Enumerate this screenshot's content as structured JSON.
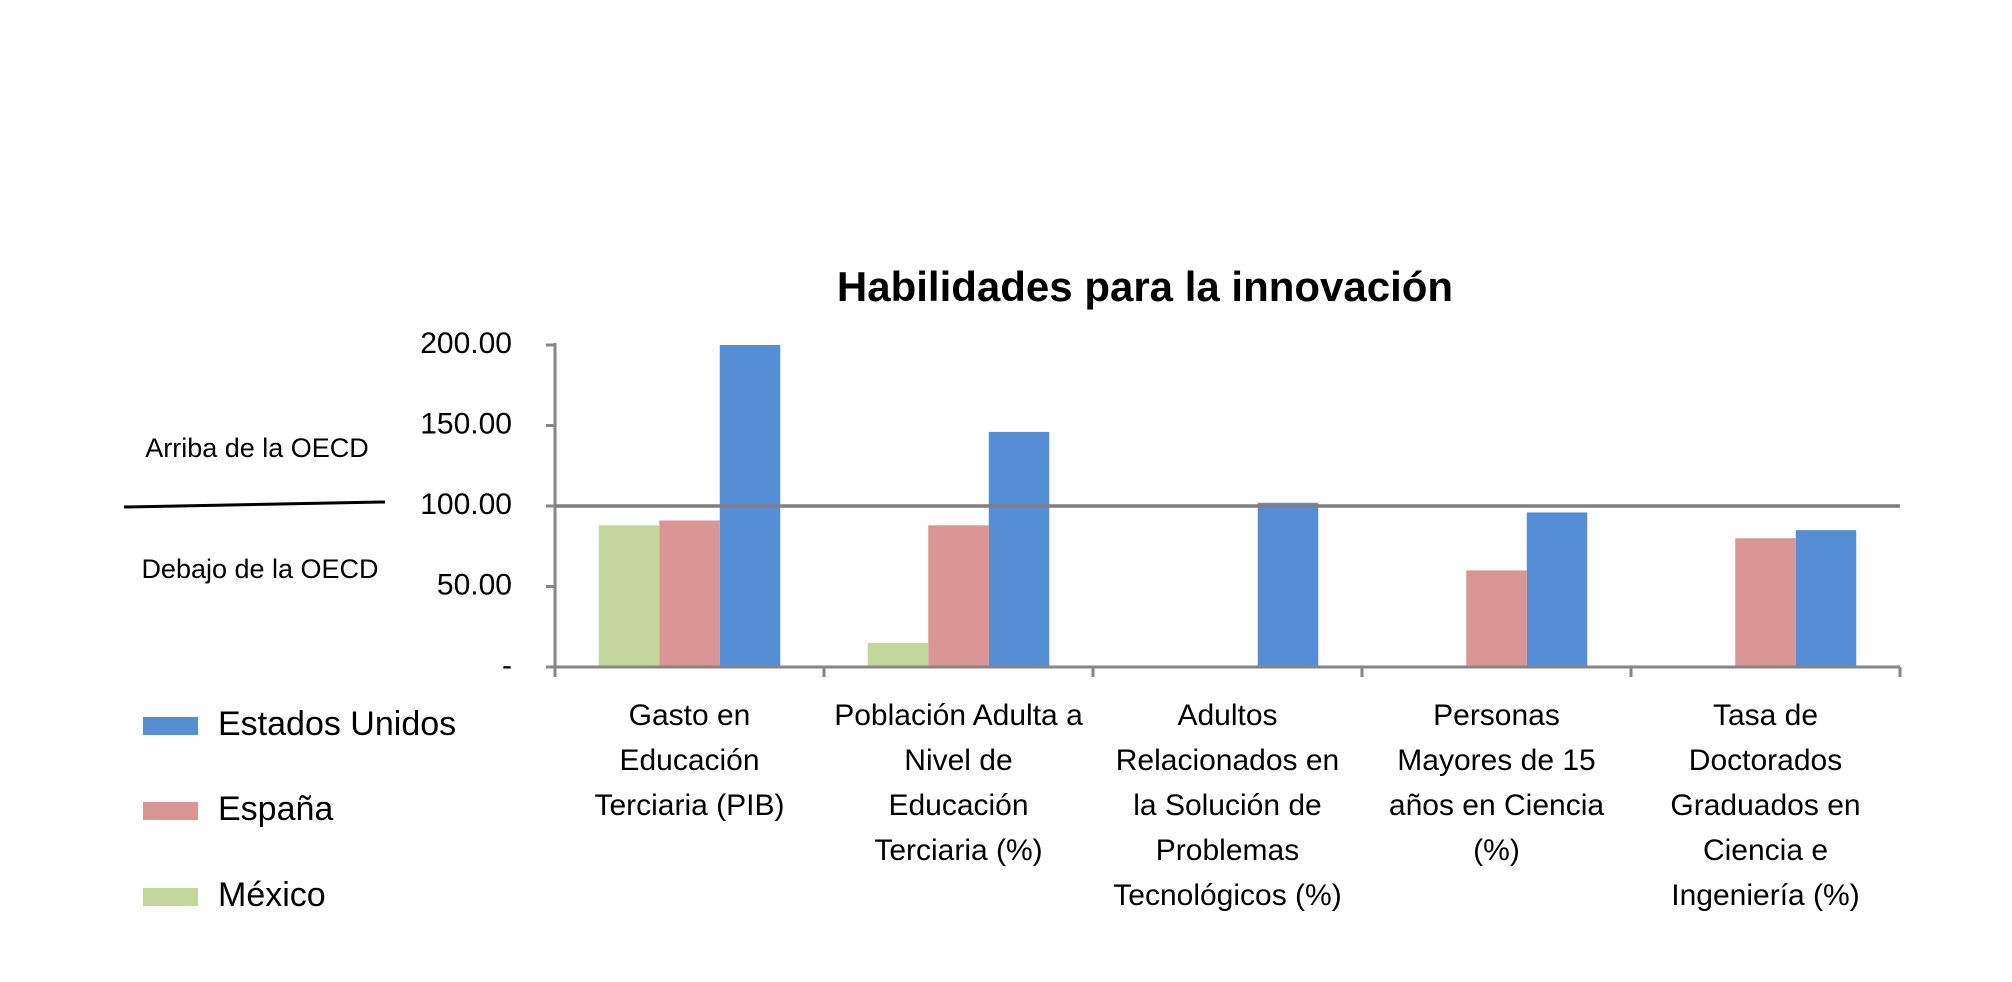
{
  "chart_data": {
    "type": "bar",
    "title": "Habilidades para la innovación",
    "categories": [
      "Gasto en Educación Terciaria (PIB)",
      "Población Adulta a Nivel de Educación Terciaria (%)",
      "Adultos Relacionados en la Solución de Problemas Tecnológicos (%)",
      "Personas Mayores de 15 años en Ciencia (%)",
      "Tasa de Doctorados Graduados en Ciencia e Ingeniería (%)"
    ],
    "series": [
      {
        "name": "Estados Unidos",
        "color": "#558ed5",
        "values": [
          200,
          146,
          102,
          96,
          85
        ]
      },
      {
        "name": "España",
        "color": "#d99694",
        "values": [
          91,
          88,
          null,
          60,
          80
        ]
      },
      {
        "name": "México",
        "color": "#c3d69b",
        "values": [
          88,
          15,
          null,
          null,
          null
        ]
      }
    ],
    "ylim": [
      0,
      200
    ],
    "yticks": [
      {
        "value": 0,
        "label": "-"
      },
      {
        "value": 50,
        "label": "50.00"
      },
      {
        "value": 100,
        "label": "100.00"
      },
      {
        "value": 150,
        "label": "150.00"
      },
      {
        "value": 200,
        "label": "200.00"
      }
    ],
    "reference_line": 100,
    "annotations": [
      "Arriba de la OECD",
      "Debajo de la OECD"
    ],
    "legend": "left"
  }
}
